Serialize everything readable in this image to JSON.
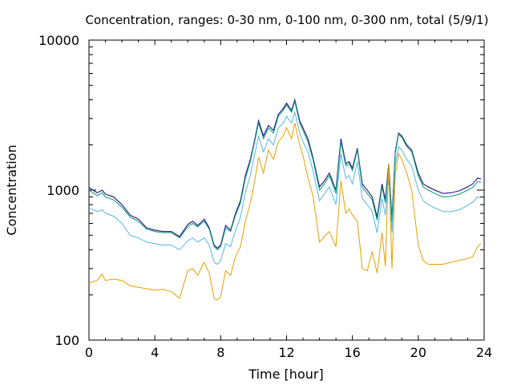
{
  "chart_data": {
    "type": "line",
    "title": "Concentration, ranges: 0-30 nm, 0-100 nm, 0-300 nm, total (5/9/1)",
    "xlabel": "Time [hour]",
    "ylabel": "Concentration",
    "xlim": [
      0,
      24
    ],
    "ylim": [
      100,
      10000
    ],
    "yscale": "log",
    "x_ticks": [
      0,
      4,
      8,
      12,
      16,
      20,
      24
    ],
    "x_tick_labels": [
      "0",
      "4",
      "8",
      "12",
      "16",
      "20",
      "24"
    ],
    "y_ticks": [
      100,
      1000,
      10000
    ],
    "y_tick_labels": [
      "100",
      "1000",
      "10000"
    ],
    "grid": false,
    "legend": "none",
    "x": [
      0,
      0.5,
      0.8,
      1,
      1.5,
      2,
      2.5,
      3,
      3.5,
      4,
      4.5,
      5,
      5.5,
      6,
      6.3,
      6.6,
      7,
      7.3,
      7.6,
      7.8,
      8,
      8.3,
      8.6,
      8.9,
      9.2,
      9.5,
      9.8,
      10,
      10.3,
      10.6,
      10.9,
      11.2,
      11.5,
      11.8,
      12,
      12.3,
      12.5,
      12.8,
      13,
      13.3,
      13.6,
      14,
      14.3,
      14.6,
      15,
      15.3,
      15.6,
      15.8,
      16,
      16.3,
      16.6,
      16.9,
      17.2,
      17.5,
      17.8,
      18,
      18.2,
      18.4,
      18.6,
      18.8,
      19,
      19.3,
      19.6,
      20,
      20.3,
      20.6,
      21,
      21.5,
      22,
      22.5,
      23,
      23.3,
      23.6,
      23.8
    ],
    "series": [
      {
        "color": "#9400d3",
        "values": [
          1040,
          960,
          1000,
          940,
          900,
          800,
          680,
          640,
          560,
          540,
          530,
          530,
          490,
          590,
          620,
          580,
          640,
          560,
          430,
          410,
          430,
          580,
          540,
          700,
          850,
          1250,
          1600,
          2000,
          2900,
          2300,
          2700,
          2500,
          3200,
          3500,
          3800,
          3400,
          4000,
          2900,
          2600,
          2200,
          1650,
          1050,
          1150,
          1300,
          1000,
          2200,
          1500,
          1550,
          1400,
          1900,
          1100,
          1000,
          900,
          660,
          1100,
          860,
          1500,
          640,
          1800,
          2400,
          2300,
          2000,
          1850,
          1300,
          1100,
          1050,
          1000,
          950,
          960,
          990,
          1050,
          1100,
          1200,
          1190
        ]
      },
      {
        "color": "#20208a",
        "values": [
          1040,
          960,
          1000,
          940,
          900,
          800,
          680,
          640,
          560,
          540,
          530,
          530,
          490,
          590,
          620,
          580,
          640,
          560,
          430,
          410,
          430,
          580,
          540,
          700,
          850,
          1250,
          1600,
          2000,
          2900,
          2300,
          2700,
          2500,
          3200,
          3500,
          3800,
          3400,
          4000,
          2900,
          2600,
          2200,
          1650,
          1050,
          1150,
          1300,
          1000,
          2200,
          1500,
          1550,
          1400,
          1900,
          1100,
          1000,
          900,
          660,
          1100,
          860,
          1500,
          640,
          1800,
          2400,
          2300,
          2000,
          1850,
          1300,
          1100,
          1050,
          1000,
          950,
          960,
          990,
          1050,
          1100,
          1200,
          1190
        ]
      },
      {
        "color": "#009e73",
        "values": [
          1000,
          920,
          960,
          900,
          860,
          770,
          660,
          620,
          550,
          530,
          520,
          520,
          480,
          570,
          600,
          570,
          620,
          550,
          420,
          400,
          420,
          560,
          530,
          680,
          820,
          1200,
          1550,
          1950,
          2800,
          2200,
          2600,
          2400,
          3100,
          3400,
          3700,
          3300,
          3900,
          2800,
          2500,
          2100,
          1600,
          1000,
          1100,
          1250,
          950,
          2100,
          1450,
          1500,
          1350,
          1850,
          1050,
          950,
          860,
          630,
          1050,
          820,
          1450,
          610,
          1750,
          2350,
          2250,
          1950,
          1800,
          1250,
          1050,
          1000,
          950,
          900,
          910,
          940,
          1000,
          1040,
          1140,
          1130
        ]
      },
      {
        "color": "#56b4e9",
        "values": [
          760,
          720,
          740,
          700,
          670,
          600,
          500,
          480,
          450,
          440,
          430,
          430,
          400,
          460,
          480,
          450,
          480,
          430,
          330,
          320,
          340,
          440,
          420,
          540,
          660,
          960,
          1250,
          1600,
          2300,
          1800,
          2200,
          2000,
          2600,
          2800,
          3100,
          2800,
          3300,
          2400,
          2100,
          1800,
          1350,
          850,
          940,
          1050,
          800,
          1750,
          1200,
          1250,
          1100,
          1550,
          880,
          800,
          720,
          520,
          880,
          680,
          1200,
          520,
          1450,
          1950,
          1850,
          1600,
          1450,
          1000,
          850,
          800,
          760,
          720,
          720,
          740,
          790,
          830,
          900,
          890
        ]
      },
      {
        "color": "#e69f00",
        "values": [
          240,
          250,
          275,
          250,
          255,
          250,
          230,
          225,
          220,
          215,
          218,
          210,
          190,
          290,
          300,
          270,
          330,
          280,
          190,
          185,
          195,
          290,
          270,
          360,
          420,
          620,
          820,
          1050,
          1650,
          1300,
          1850,
          1600,
          2100,
          2300,
          2600,
          2200,
          2800,
          2000,
          1700,
          1200,
          920,
          450,
          490,
          530,
          420,
          1150,
          700,
          750,
          680,
          620,
          300,
          290,
          390,
          280,
          520,
          310,
          1500,
          300,
          1250,
          1750,
          1600,
          1300,
          1000,
          430,
          340,
          320,
          320,
          320,
          330,
          340,
          350,
          360,
          420,
          440
        ]
      }
    ]
  }
}
